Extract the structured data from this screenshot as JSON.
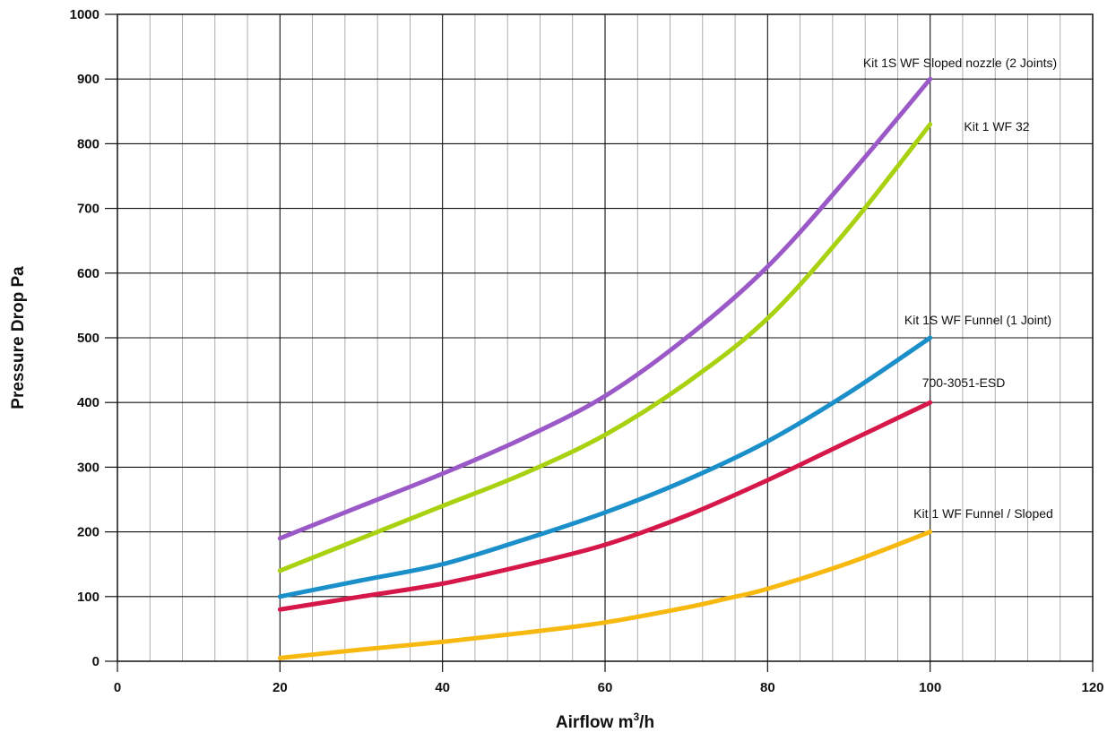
{
  "chart_data": {
    "type": "line",
    "xlabel": "Airflow m",
    "xlabel_sup": "3",
    "xlabel_suffix": "/h",
    "ylabel": "Pressure Drop Pa",
    "xlim": [
      0,
      120
    ],
    "ylim": [
      0,
      1000
    ],
    "x_ticks": [
      "0",
      "20",
      "40",
      "60",
      "80",
      "100",
      "120"
    ],
    "y_ticks": [
      "0",
      "100",
      "200",
      "300",
      "400",
      "500",
      "600",
      "700",
      "800",
      "900",
      "1000"
    ],
    "grid": true,
    "legend": "inline labels at line ends",
    "series": [
      {
        "name": "Kit 1S WF Sloped nozzle (2 Joints)",
        "color": "#9b59c8",
        "x": [
          20,
          30,
          40,
          50,
          60,
          70,
          80,
          90,
          100
        ],
        "y": [
          190,
          240,
          290,
          345,
          410,
          500,
          610,
          750,
          900
        ]
      },
      {
        "name": "Kit 1 WF 32",
        "color": "#a8d20f",
        "x": [
          20,
          30,
          40,
          50,
          60,
          70,
          80,
          90,
          100
        ],
        "y": [
          140,
          190,
          240,
          290,
          350,
          430,
          530,
          670,
          830
        ]
      },
      {
        "name": "Kit 1S WF Funnel (1 Joint)",
        "color": "#1a8fc9",
        "x": [
          20,
          30,
          40,
          50,
          60,
          70,
          80,
          90,
          100
        ],
        "y": [
          100,
          125,
          150,
          188,
          230,
          280,
          340,
          415,
          500
        ]
      },
      {
        "name": "700-3051-ESD",
        "color": "#d5174a",
        "x": [
          20,
          30,
          40,
          50,
          60,
          70,
          80,
          90,
          100
        ],
        "y": [
          80,
          100,
          120,
          148,
          180,
          225,
          280,
          340,
          400
        ]
      },
      {
        "name": "Kit 1 WF Funnel / Sloped",
        "color": "#f7b90f",
        "x": [
          20,
          30,
          40,
          50,
          60,
          70,
          75,
          80,
          90,
          100
        ],
        "y": [
          5,
          18,
          30,
          44,
          60,
          83,
          97,
          112,
          152,
          200
        ]
      }
    ]
  }
}
